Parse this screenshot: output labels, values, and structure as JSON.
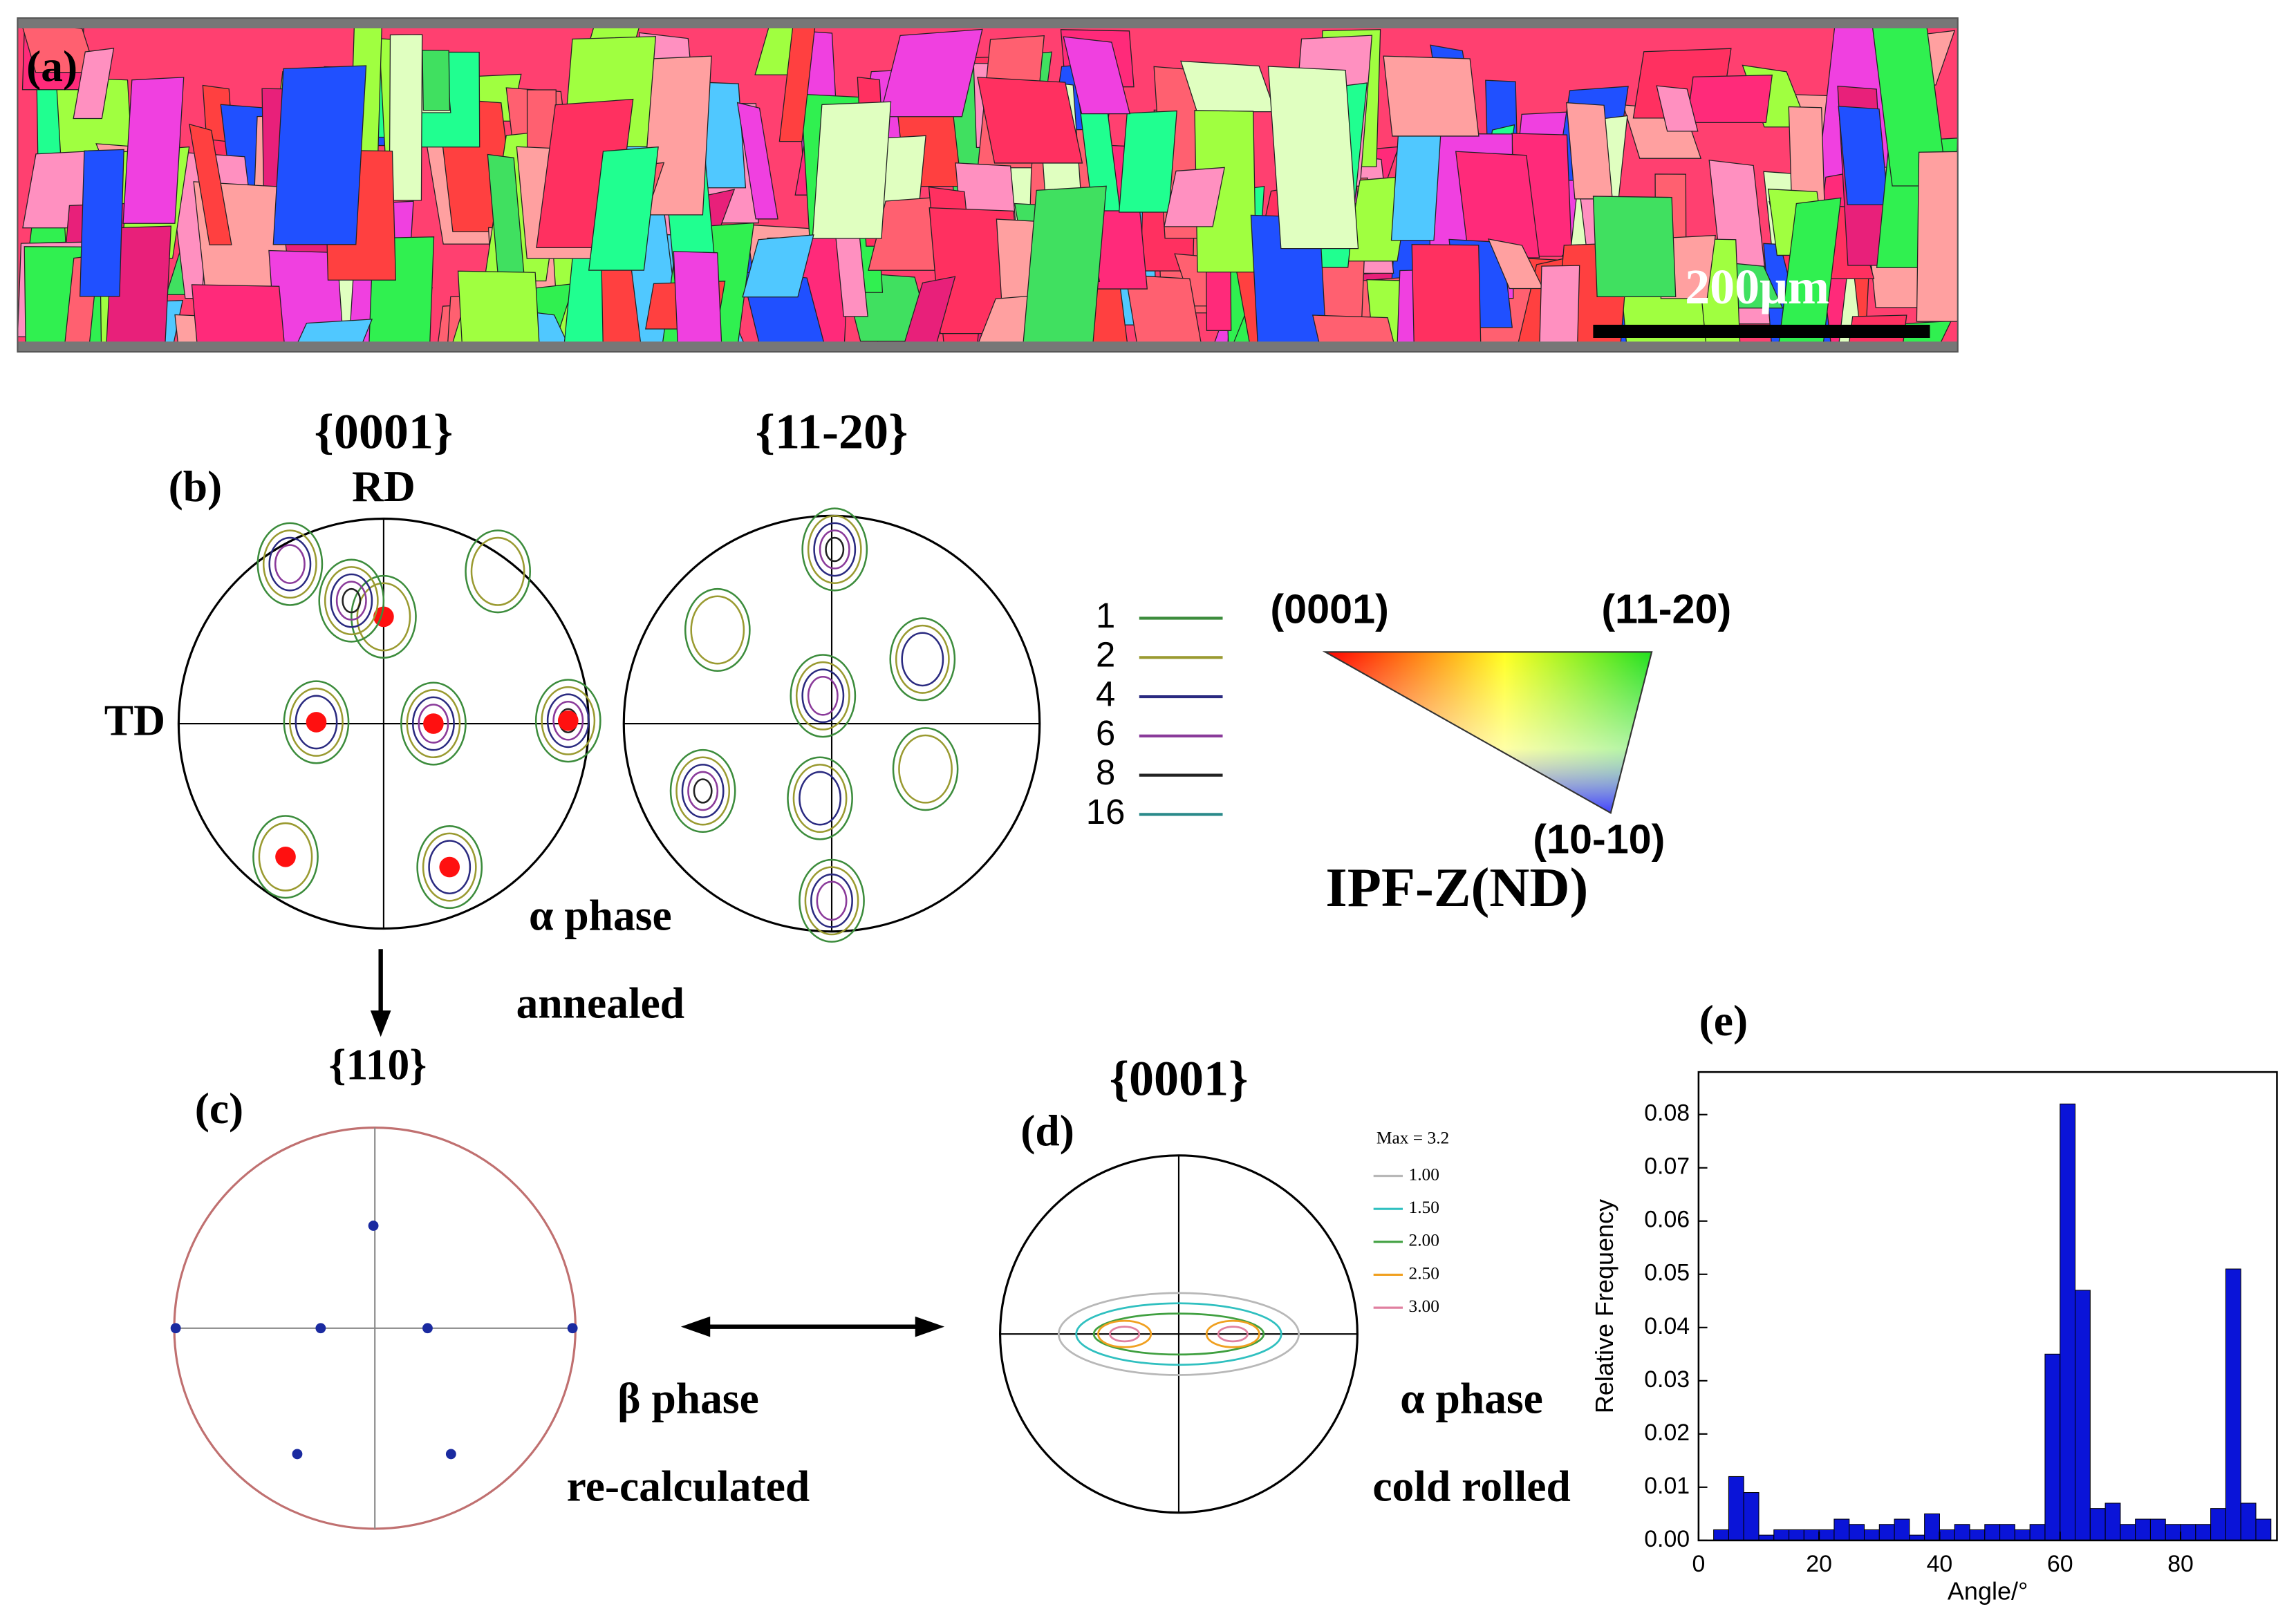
{
  "panel_a": {
    "label": "(a)",
    "scale_bar": "200μm"
  },
  "panel_b": {
    "label": "(b)",
    "pf_titles": [
      "{0001}",
      "{11-20}"
    ],
    "rd": "RD",
    "td": "TD",
    "phase": "α phase",
    "state": "annealed",
    "contour_levels": [
      {
        "label": "1",
        "color": "#3c8c3c"
      },
      {
        "label": "2",
        "color": "#9a9a30"
      },
      {
        "label": "4",
        "color": "#2a2a80"
      },
      {
        "label": "6",
        "color": "#8a3a9a"
      },
      {
        "label": "8",
        "color": "#222222"
      },
      {
        "label": "16",
        "color": "#2a8a8a"
      }
    ],
    "ipf": {
      "corners": [
        "(0001)",
        "(11-20)",
        "(10-10)"
      ],
      "title": "IPF-Z(ND)"
    }
  },
  "panel_c": {
    "label": "(c)",
    "title": "{110}",
    "phase": "β phase",
    "state": "re-calculated"
  },
  "panel_d": {
    "label": "(d)",
    "title": "{0001}",
    "max": "Max = 3.2",
    "phase": "α phase",
    "state": "cold rolled",
    "levels": [
      {
        "label": "1.00",
        "color": "#b8b8b8"
      },
      {
        "label": "1.50",
        "color": "#30c0c0"
      },
      {
        "label": "2.00",
        "color": "#40a040"
      },
      {
        "label": "2.50",
        "color": "#f0a020"
      },
      {
        "label": "3.00",
        "color": "#e080a0"
      }
    ]
  },
  "panel_e": {
    "label": "(e)",
    "type": "bar",
    "x_label": "Angle/°",
    "y_label": "Relative Frequency",
    "color": "#0a14d8",
    "bins": [
      2.5,
      5,
      7.5,
      10,
      12.5,
      15,
      17.5,
      20,
      22.5,
      25,
      27.5,
      30,
      32.5,
      35,
      37.5,
      40,
      42.5,
      45,
      47.5,
      50,
      52.5,
      55,
      57.5,
      60,
      62.5,
      65,
      67.5,
      70,
      72.5,
      75,
      77.5,
      80,
      82.5,
      85,
      87.5,
      90,
      92.5,
      95
    ],
    "values": [
      0.002,
      0.012,
      0.009,
      0.001,
      0.002,
      0.002,
      0.002,
      0.002,
      0.004,
      0.003,
      0.002,
      0.003,
      0.004,
      0.001,
      0.005,
      0.002,
      0.003,
      0.002,
      0.003,
      0.003,
      0.002,
      0.003,
      0.035,
      0.082,
      0.047,
      0.006,
      0.007,
      0.003,
      0.004,
      0.004,
      0.003,
      0.003,
      0.003,
      0.006,
      0.051,
      0.007,
      0.004
    ],
    "xlim": [
      0,
      96
    ],
    "ylim": [
      0,
      0.088
    ],
    "xticks": [
      0,
      20,
      40,
      60,
      80
    ],
    "yticks": [
      {
        "value": 0,
        "label": "0.00"
      },
      0.01,
      0.02,
      0.03,
      0.04,
      0.05,
      0.06,
      0.07,
      0.08
    ]
  }
}
